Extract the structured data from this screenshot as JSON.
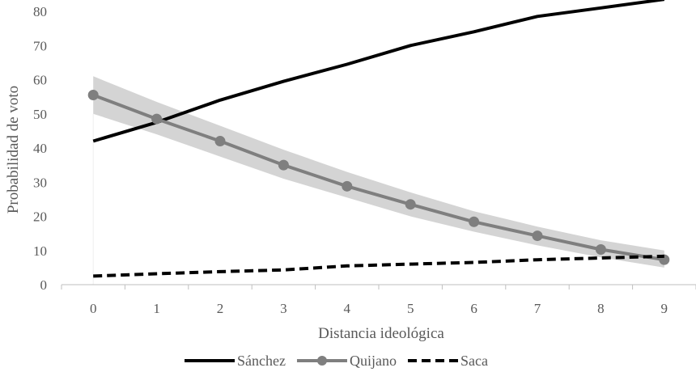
{
  "chart_data": {
    "type": "line",
    "title": "",
    "xlabel": "Distancia ideológica",
    "ylabel": "Probabilidad de voto",
    "categories": [
      "0",
      "1",
      "2",
      "3",
      "4",
      "5",
      "6",
      "7",
      "8",
      "9"
    ],
    "ylim": [
      0,
      80
    ],
    "yticks": [
      "0",
      "10",
      "20",
      "30",
      "40",
      "50",
      "60",
      "70",
      "80"
    ],
    "grid": false,
    "legend_position": "bottom",
    "series": [
      {
        "name": "Sánchez",
        "values": [
          42,
          47.5,
          54,
          59.5,
          64.5,
          70,
          74,
          78.5,
          81,
          83.5
        ],
        "color": "#000000",
        "style": "solid",
        "marker": "none"
      },
      {
        "name": "Quijano",
        "values": [
          55.5,
          48.5,
          42,
          35,
          28.8,
          23.5,
          18.4,
          14.3,
          10.3,
          7.3
        ],
        "color": "#7f7f7f",
        "style": "solid",
        "marker": "circle",
        "ci_lower": [
          50,
          44,
          37.5,
          31,
          25.5,
          20,
          15.5,
          11.5,
          8,
          5
        ],
        "ci_upper": [
          61,
          53.5,
          46.5,
          39.5,
          33,
          27,
          21.5,
          17,
          13,
          10
        ],
        "ci_color": "#d4d4d4"
      },
      {
        "name": "Saca",
        "values": [
          2.5,
          3.2,
          3.8,
          4.3,
          5.5,
          6,
          6.5,
          7.3,
          7.8,
          8.3
        ],
        "color": "#000000",
        "style": "dashed",
        "marker": "none"
      }
    ]
  }
}
